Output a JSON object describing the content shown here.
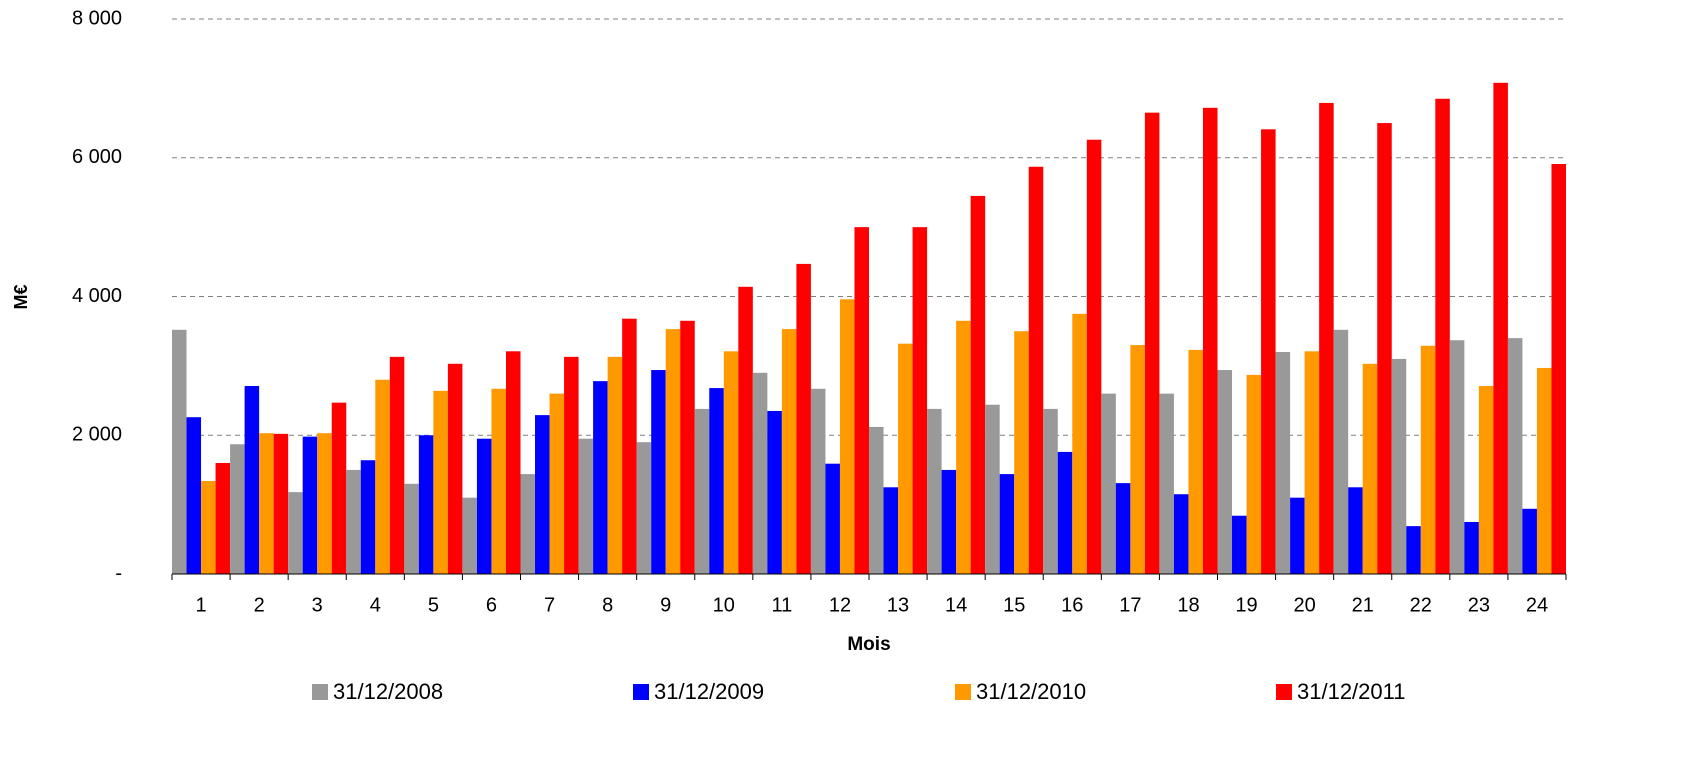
{
  "chart_data": {
    "type": "bar",
    "y_label": "M€",
    "x_label": "Mois",
    "categories": [
      "1",
      "2",
      "3",
      "4",
      "5",
      "6",
      "7",
      "8",
      "9",
      "10",
      "11",
      "12",
      "13",
      "14",
      "15",
      "16",
      "17",
      "18",
      "19",
      "20",
      "21",
      "22",
      "23",
      "24"
    ],
    "series": [
      {
        "name": "31/12/2008",
        "color": "#999999",
        "values": [
          3520,
          1870,
          1180,
          1500,
          1300,
          1100,
          1440,
          1950,
          1900,
          2380,
          2900,
          2670,
          2120,
          2380,
          2440,
          2380,
          2600,
          2600,
          2940,
          3200,
          3520,
          3100,
          3370,
          3400
        ]
      },
      {
        "name": "31/12/2009",
        "color": "#0000ff",
        "values": [
          2260,
          2710,
          1980,
          1640,
          2000,
          1950,
          2290,
          2780,
          2940,
          2680,
          2350,
          1590,
          1250,
          1500,
          1440,
          1760,
          1310,
          1150,
          840,
          1100,
          1250,
          690,
          750,
          940
        ]
      },
      {
        "name": "31/12/2010",
        "color": "#ff9900",
        "values": [
          1340,
          2030,
          2030,
          2800,
          2640,
          2670,
          2600,
          3130,
          3530,
          3210,
          3530,
          3960,
          3320,
          3650,
          3500,
          3750,
          3300,
          3230,
          2870,
          3210,
          3030,
          3290,
          2710,
          2970
        ]
      },
      {
        "name": "31/12/2011",
        "color": "#ff0000",
        "values": [
          1600,
          2020,
          2470,
          3130,
          3030,
          3210,
          3130,
          3680,
          3650,
          4140,
          4470,
          5000,
          5000,
          5450,
          5870,
          6260,
          6650,
          6720,
          6410,
          6790,
          6500,
          6850,
          7080,
          5910
        ]
      }
    ],
    "ylim": [
      0,
      8000
    ],
    "yticks": [
      {
        "value": 0,
        "label": "-"
      },
      {
        "value": 2000,
        "label": "2 000"
      },
      {
        "value": 4000,
        "label": "4 000"
      },
      {
        "value": 6000,
        "label": "6 000"
      },
      {
        "value": 8000,
        "label": "8 000"
      }
    ],
    "grid": true,
    "legend": "bottom"
  }
}
